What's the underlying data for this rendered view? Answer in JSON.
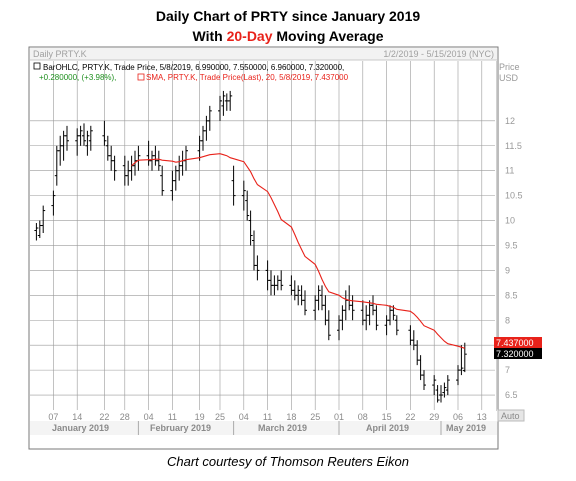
{
  "heading": {
    "line1": "Daily Chart of PRTY since January 2019",
    "line2_pre": "With ",
    "line2_highlight": "20-Day",
    "line2_post": " Moving Average"
  },
  "credit": "Chart courtesy of Thomson Reuters Eikon",
  "panel": {
    "instrument": "Daily PRTY.K",
    "date_range": "1/2/2019 - 5/15/2019 (NYC)",
    "price_label": "Price",
    "currency": "USD",
    "auto_label": "Auto",
    "legend_ohlc": "BarOHLC, PRTY.K, Trade Price, 5/8/2019, 6.990000, 7.550000, 6.960000, 7.320000,",
    "legend_change": "+0.280000, (+3.98%),",
    "legend_sma": "SMA, PRTY.K, Trade Price(Last), 20, 5/8/2019, 7.437000",
    "sma_tag": "7.437000",
    "price_tag": "7.320000"
  },
  "colors": {
    "sma": "#e8221a",
    "bars": "#000000",
    "grid": "#9a9a9a",
    "legend_change": "#1e8f1e",
    "axis_bg": "#eeeeee"
  },
  "chart_data": {
    "type": "ohlc",
    "title": "Daily Chart of PRTY since January 2019",
    "ylim": [
      6.2,
      13.2
    ],
    "y_ticks": [
      6.5,
      7,
      7.5,
      8,
      8.5,
      9,
      9.5,
      10,
      10.5,
      11,
      11.5,
      12
    ],
    "x_day_ticks": [
      "07",
      "14",
      "22",
      "28",
      "04",
      "11",
      "19",
      "25",
      "04",
      "11",
      "18",
      "25",
      "01",
      "08",
      "15",
      "22",
      "29",
      "06",
      "13"
    ],
    "x_month_labels": [
      "January 2019",
      "February 2019",
      "March 2019",
      "April 2019",
      "May 2019"
    ],
    "grid": true,
    "dates": [
      "2019-01-02",
      "2019-01-03",
      "2019-01-04",
      "2019-01-07",
      "2019-01-08",
      "2019-01-09",
      "2019-01-10",
      "2019-01-11",
      "2019-01-14",
      "2019-01-15",
      "2019-01-16",
      "2019-01-17",
      "2019-01-18",
      "2019-01-22",
      "2019-01-23",
      "2019-01-24",
      "2019-01-25",
      "2019-01-28",
      "2019-01-29",
      "2019-01-30",
      "2019-01-31",
      "2019-02-01",
      "2019-02-04",
      "2019-02-05",
      "2019-02-06",
      "2019-02-07",
      "2019-02-08",
      "2019-02-11",
      "2019-02-12",
      "2019-02-13",
      "2019-02-14",
      "2019-02-15",
      "2019-02-19",
      "2019-02-20",
      "2019-02-21",
      "2019-02-22",
      "2019-02-25",
      "2019-02-26",
      "2019-02-27",
      "2019-02-28",
      "2019-03-01",
      "2019-03-04",
      "2019-03-05",
      "2019-03-06",
      "2019-03-07",
      "2019-03-08",
      "2019-03-11",
      "2019-03-12",
      "2019-03-13",
      "2019-03-14",
      "2019-03-15",
      "2019-03-18",
      "2019-03-19",
      "2019-03-20",
      "2019-03-21",
      "2019-03-22",
      "2019-03-25",
      "2019-03-26",
      "2019-03-27",
      "2019-03-28",
      "2019-03-29",
      "2019-04-01",
      "2019-04-02",
      "2019-04-03",
      "2019-04-04",
      "2019-04-05",
      "2019-04-08",
      "2019-04-09",
      "2019-04-10",
      "2019-04-11",
      "2019-04-12",
      "2019-04-15",
      "2019-04-16",
      "2019-04-17",
      "2019-04-18",
      "2019-04-22",
      "2019-04-23",
      "2019-04-24",
      "2019-04-25",
      "2019-04-26",
      "2019-04-29",
      "2019-04-30",
      "2019-05-01",
      "2019-05-02",
      "2019-05-03",
      "2019-05-06",
      "2019-05-07",
      "2019-05-08"
    ],
    "ohlc": [
      [
        9.8,
        9.95,
        9.6,
        9.85
      ],
      [
        9.7,
        10.0,
        9.65,
        9.9
      ],
      [
        9.9,
        10.3,
        9.75,
        10.2
      ],
      [
        10.3,
        10.6,
        10.1,
        10.5
      ],
      [
        10.9,
        11.5,
        10.7,
        11.4
      ],
      [
        11.4,
        11.7,
        11.1,
        11.5
      ],
      [
        11.5,
        11.8,
        11.2,
        11.7
      ],
      [
        11.7,
        11.9,
        11.4,
        11.6
      ],
      [
        11.6,
        11.85,
        11.3,
        11.7
      ],
      [
        11.7,
        11.9,
        11.5,
        11.8
      ],
      [
        11.7,
        11.95,
        11.5,
        11.6
      ],
      [
        11.5,
        11.8,
        11.3,
        11.7
      ],
      [
        11.6,
        11.9,
        11.4,
        11.8
      ],
      [
        11.7,
        12.0,
        11.5,
        11.6
      ],
      [
        11.5,
        11.7,
        11.2,
        11.3
      ],
      [
        11.3,
        11.5,
        11.0,
        11.2
      ],
      [
        11.2,
        11.3,
        10.8,
        11.0
      ],
      [
        11.1,
        11.3,
        10.7,
        10.9
      ],
      [
        10.9,
        11.2,
        10.7,
        11.0
      ],
      [
        11.0,
        11.3,
        10.8,
        11.1
      ],
      [
        11.1,
        11.4,
        10.9,
        11.2
      ],
      [
        11.2,
        11.5,
        11.0,
        11.3
      ],
      [
        11.3,
        11.6,
        11.1,
        11.2
      ],
      [
        11.2,
        11.4,
        11.0,
        11.3
      ],
      [
        11.3,
        11.5,
        11.1,
        11.2
      ],
      [
        11.2,
        11.4,
        11.0,
        11.1
      ],
      [
        10.9,
        11.1,
        10.5,
        10.6
      ],
      [
        10.6,
        11.0,
        10.4,
        10.8
      ],
      [
        10.8,
        11.1,
        10.6,
        11.0
      ],
      [
        11.0,
        11.3,
        10.8,
        11.1
      ],
      [
        11.1,
        11.4,
        10.9,
        11.2
      ],
      [
        11.2,
        11.5,
        11.0,
        11.4
      ],
      [
        11.4,
        11.7,
        11.2,
        11.6
      ],
      [
        11.6,
        11.9,
        11.4,
        11.8
      ],
      [
        11.8,
        12.1,
        11.6,
        12.0
      ],
      [
        12.0,
        12.3,
        11.8,
        12.2
      ],
      [
        12.2,
        12.5,
        12.0,
        12.4
      ],
      [
        12.3,
        12.6,
        12.1,
        12.5
      ],
      [
        12.4,
        12.55,
        12.2,
        12.4
      ],
      [
        12.4,
        12.6,
        12.2,
        12.5
      ],
      [
        10.8,
        11.1,
        10.3,
        10.5
      ],
      [
        10.5,
        10.8,
        10.2,
        10.6
      ],
      [
        10.4,
        10.6,
        10.0,
        10.1
      ],
      [
        10.0,
        10.2,
        9.5,
        9.7
      ],
      [
        9.6,
        9.8,
        9.0,
        9.1
      ],
      [
        9.1,
        9.3,
        8.8,
        9.0
      ],
      [
        9.0,
        9.2,
        8.6,
        8.8
      ],
      [
        8.8,
        9.0,
        8.5,
        8.7
      ],
      [
        8.7,
        8.9,
        8.5,
        8.7
      ],
      [
        8.7,
        8.9,
        8.6,
        8.8
      ],
      [
        8.8,
        9.0,
        8.6,
        8.7
      ],
      [
        8.7,
        8.9,
        8.5,
        8.6
      ],
      [
        8.6,
        8.8,
        8.4,
        8.5
      ],
      [
        8.5,
        8.7,
        8.3,
        8.6
      ],
      [
        8.5,
        8.7,
        8.3,
        8.4
      ],
      [
        8.4,
        8.6,
        8.1,
        8.2
      ],
      [
        8.2,
        8.5,
        8.0,
        8.4
      ],
      [
        8.4,
        8.7,
        8.2,
        8.6
      ],
      [
        8.5,
        8.7,
        8.2,
        8.3
      ],
      [
        8.3,
        8.5,
        7.9,
        8.0
      ],
      [
        8.0,
        8.2,
        7.6,
        7.7
      ],
      [
        7.8,
        8.1,
        7.6,
        8.0
      ],
      [
        8.0,
        8.3,
        7.8,
        8.2
      ],
      [
        8.2,
        8.6,
        8.0,
        8.4
      ],
      [
        8.4,
        8.7,
        8.2,
        8.3
      ],
      [
        8.3,
        8.5,
        8.0,
        8.2
      ],
      [
        8.2,
        8.4,
        7.9,
        8.0
      ],
      [
        8.0,
        8.3,
        7.8,
        8.1
      ],
      [
        8.1,
        8.4,
        7.9,
        8.3
      ],
      [
        8.3,
        8.5,
        8.1,
        8.2
      ],
      [
        8.2,
        8.3,
        7.8,
        7.9
      ],
      [
        7.9,
        8.1,
        7.7,
        8.0
      ],
      [
        8.0,
        8.3,
        7.9,
        8.2
      ],
      [
        8.2,
        8.3,
        8.0,
        8.1
      ],
      [
        8.0,
        8.1,
        7.7,
        7.8
      ],
      [
        7.8,
        7.9,
        7.5,
        7.6
      ],
      [
        7.6,
        7.8,
        7.4,
        7.5
      ],
      [
        7.5,
        7.6,
        7.1,
        7.2
      ],
      [
        7.2,
        7.3,
        6.8,
        6.9
      ],
      [
        6.9,
        7.0,
        6.6,
        6.7
      ],
      [
        6.7,
        6.9,
        6.5,
        6.8
      ],
      [
        6.6,
        6.7,
        6.35,
        6.4
      ],
      [
        6.5,
        6.7,
        6.35,
        6.5
      ],
      [
        6.55,
        6.75,
        6.45,
        6.65
      ],
      [
        6.6,
        6.9,
        6.5,
        6.8
      ],
      [
        6.8,
        7.1,
        6.7,
        7.0
      ],
      [
        7.0,
        7.5,
        6.9,
        7.04
      ],
      [
        6.99,
        7.55,
        6.96,
        7.32
      ]
    ],
    "sma_20": [
      null,
      null,
      null,
      null,
      null,
      null,
      null,
      null,
      null,
      null,
      null,
      null,
      null,
      null,
      null,
      null,
      null,
      null,
      null,
      11.1,
      11.16,
      11.21,
      11.22,
      11.22,
      11.23,
      11.23,
      11.21,
      11.19,
      11.17,
      11.18,
      11.2,
      11.22,
      11.26,
      11.28,
      11.3,
      11.32,
      11.34,
      11.32,
      11.3,
      11.26,
      11.24,
      11.18,
      11.08,
      10.98,
      10.84,
      10.72,
      10.58,
      10.46,
      10.32,
      10.18,
      10.02,
      9.87,
      9.72,
      9.56,
      9.42,
      9.28,
      9.12,
      8.98,
      8.82,
      8.68,
      8.57,
      8.5,
      8.45,
      8.42,
      8.4,
      8.39,
      8.37,
      8.36,
      8.35,
      8.34,
      8.32,
      8.3,
      8.28,
      8.26,
      8.22,
      8.18,
      8.13,
      8.06,
      7.98,
      7.89,
      7.8,
      7.72,
      7.65,
      7.58,
      7.53,
      7.48,
      7.46,
      7.437
    ]
  }
}
